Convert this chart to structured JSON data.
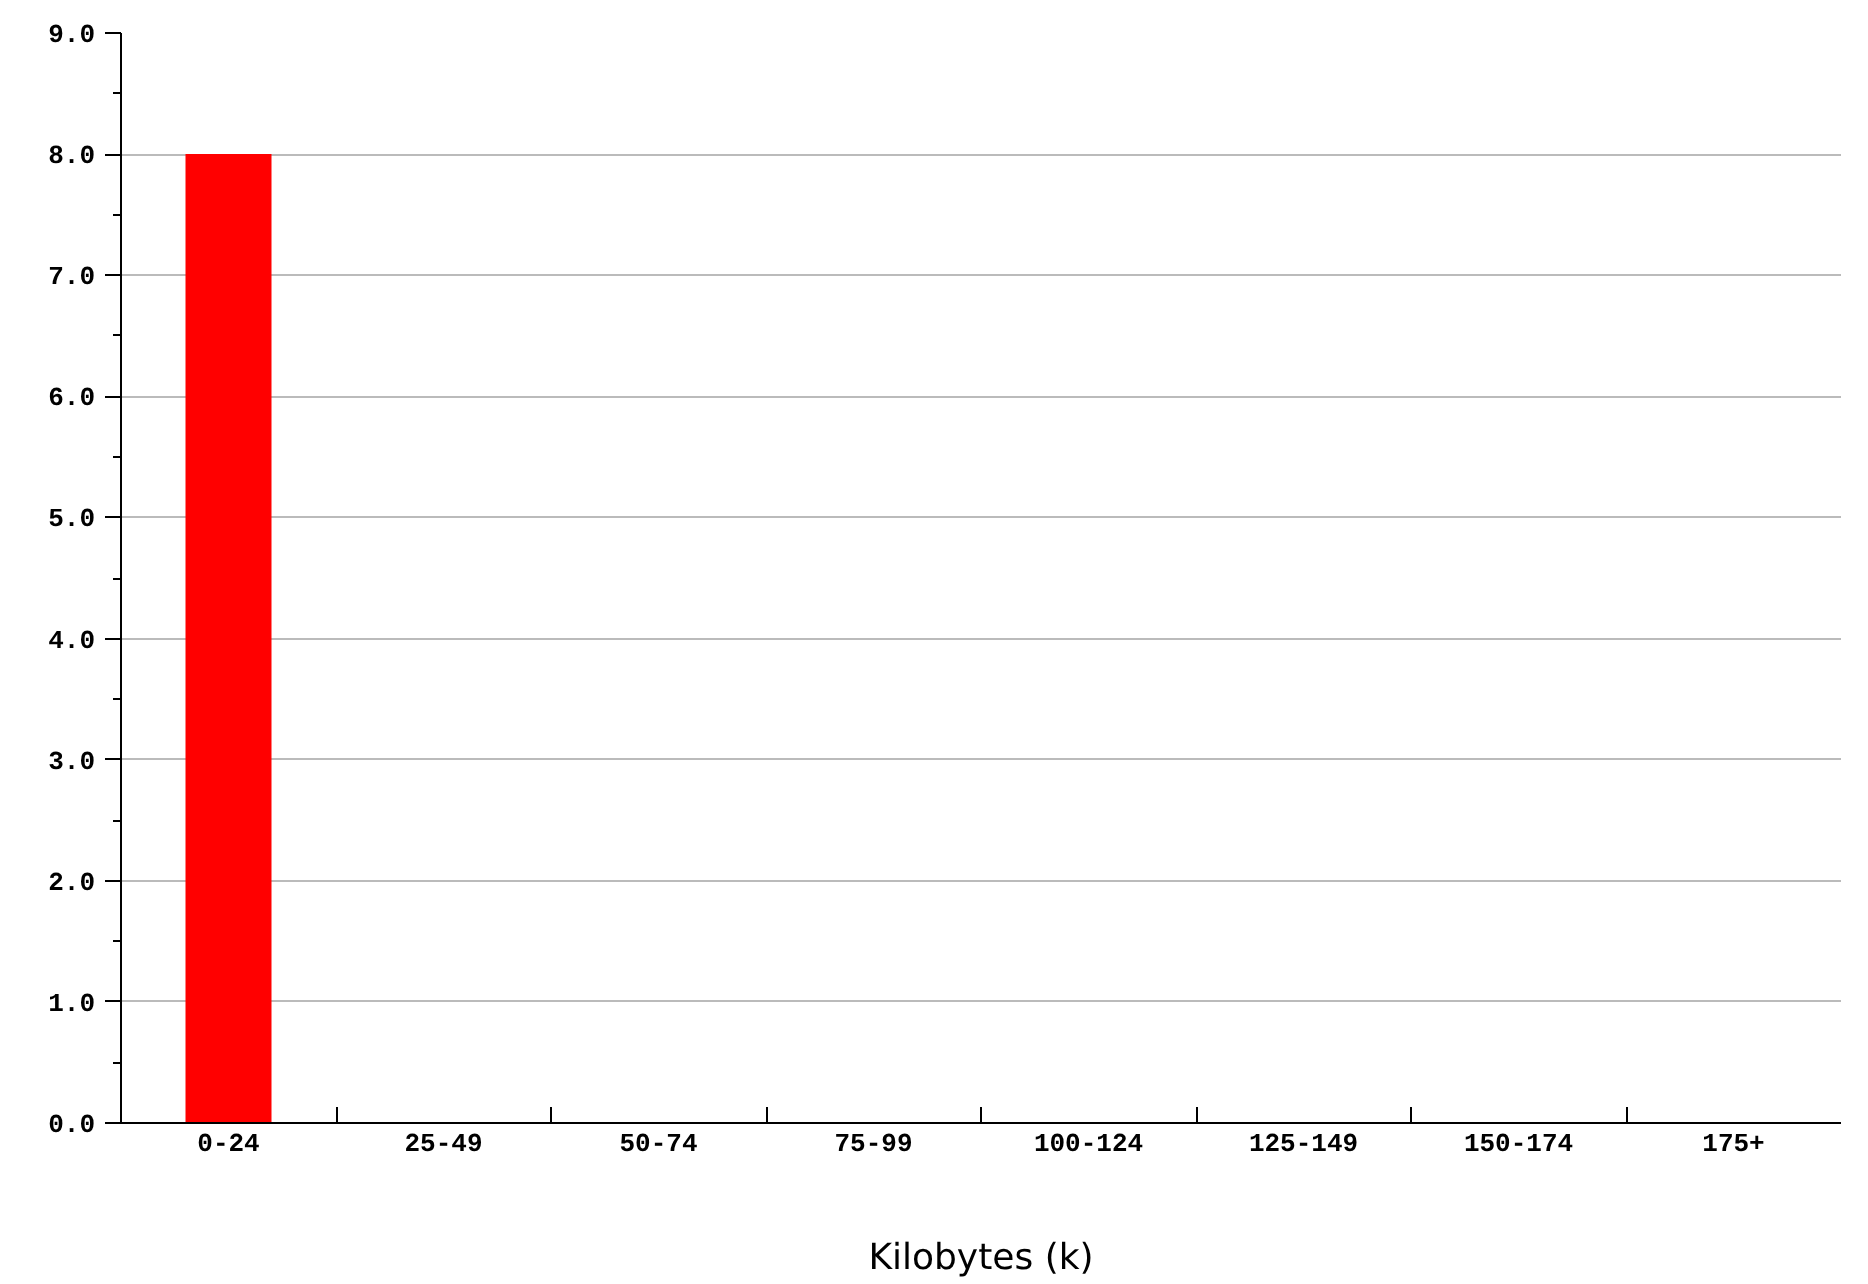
{
  "chart_data": {
    "type": "bar",
    "xlabel": "Kilobytes (k)",
    "categories": [
      "0-24",
      "25-49",
      "50-74",
      "75-99",
      "100-124",
      "125-149",
      "150-174",
      "175+"
    ],
    "values": [
      8.0,
      0,
      0,
      0,
      0,
      0,
      0,
      0
    ],
    "color": "#ff0000",
    "ylim": [
      0,
      9
    ],
    "yticks": [
      {
        "value": 0,
        "label": "0.0"
      },
      {
        "value": 1,
        "label": "1.0"
      },
      {
        "value": 2,
        "label": "2.0"
      },
      {
        "value": 3,
        "label": "3.0"
      },
      {
        "value": 4,
        "label": "4.0"
      },
      {
        "value": 5,
        "label": "5.0"
      },
      {
        "value": 6,
        "label": "6.0"
      },
      {
        "value": 7,
        "label": "7.0"
      },
      {
        "value": 8,
        "label": "8.0"
      },
      {
        "value": 9,
        "label": "9.0"
      }
    ],
    "grid": "y"
  }
}
